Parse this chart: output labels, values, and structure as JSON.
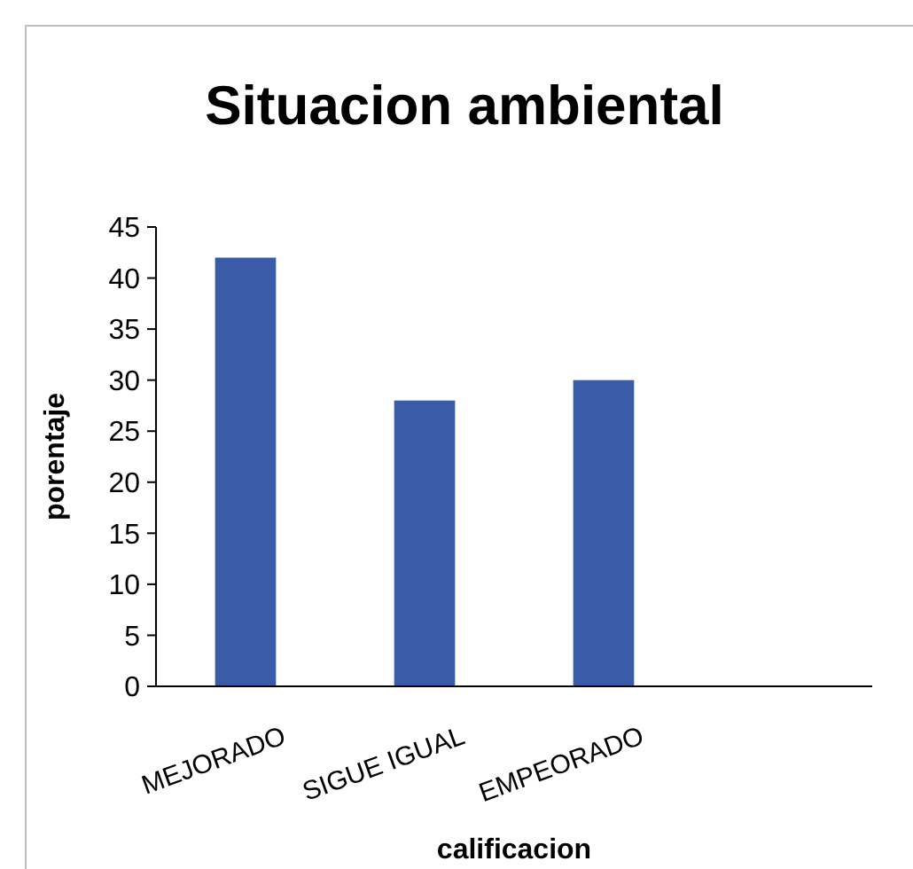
{
  "chart_data": {
    "type": "bar",
    "title": "Situacion ambiental",
    "xlabel": "calificacion",
    "ylabel": "porentaje",
    "categories": [
      "MEJORADO",
      "SIGUE IGUAL",
      "EMPEORADO",
      null
    ],
    "values": [
      42,
      28,
      30,
      null
    ],
    "color": "#3a5ca8",
    "ylim": [
      0,
      45
    ],
    "yticks": [
      0,
      5,
      10,
      15,
      20,
      25,
      30,
      35,
      40,
      45
    ]
  }
}
